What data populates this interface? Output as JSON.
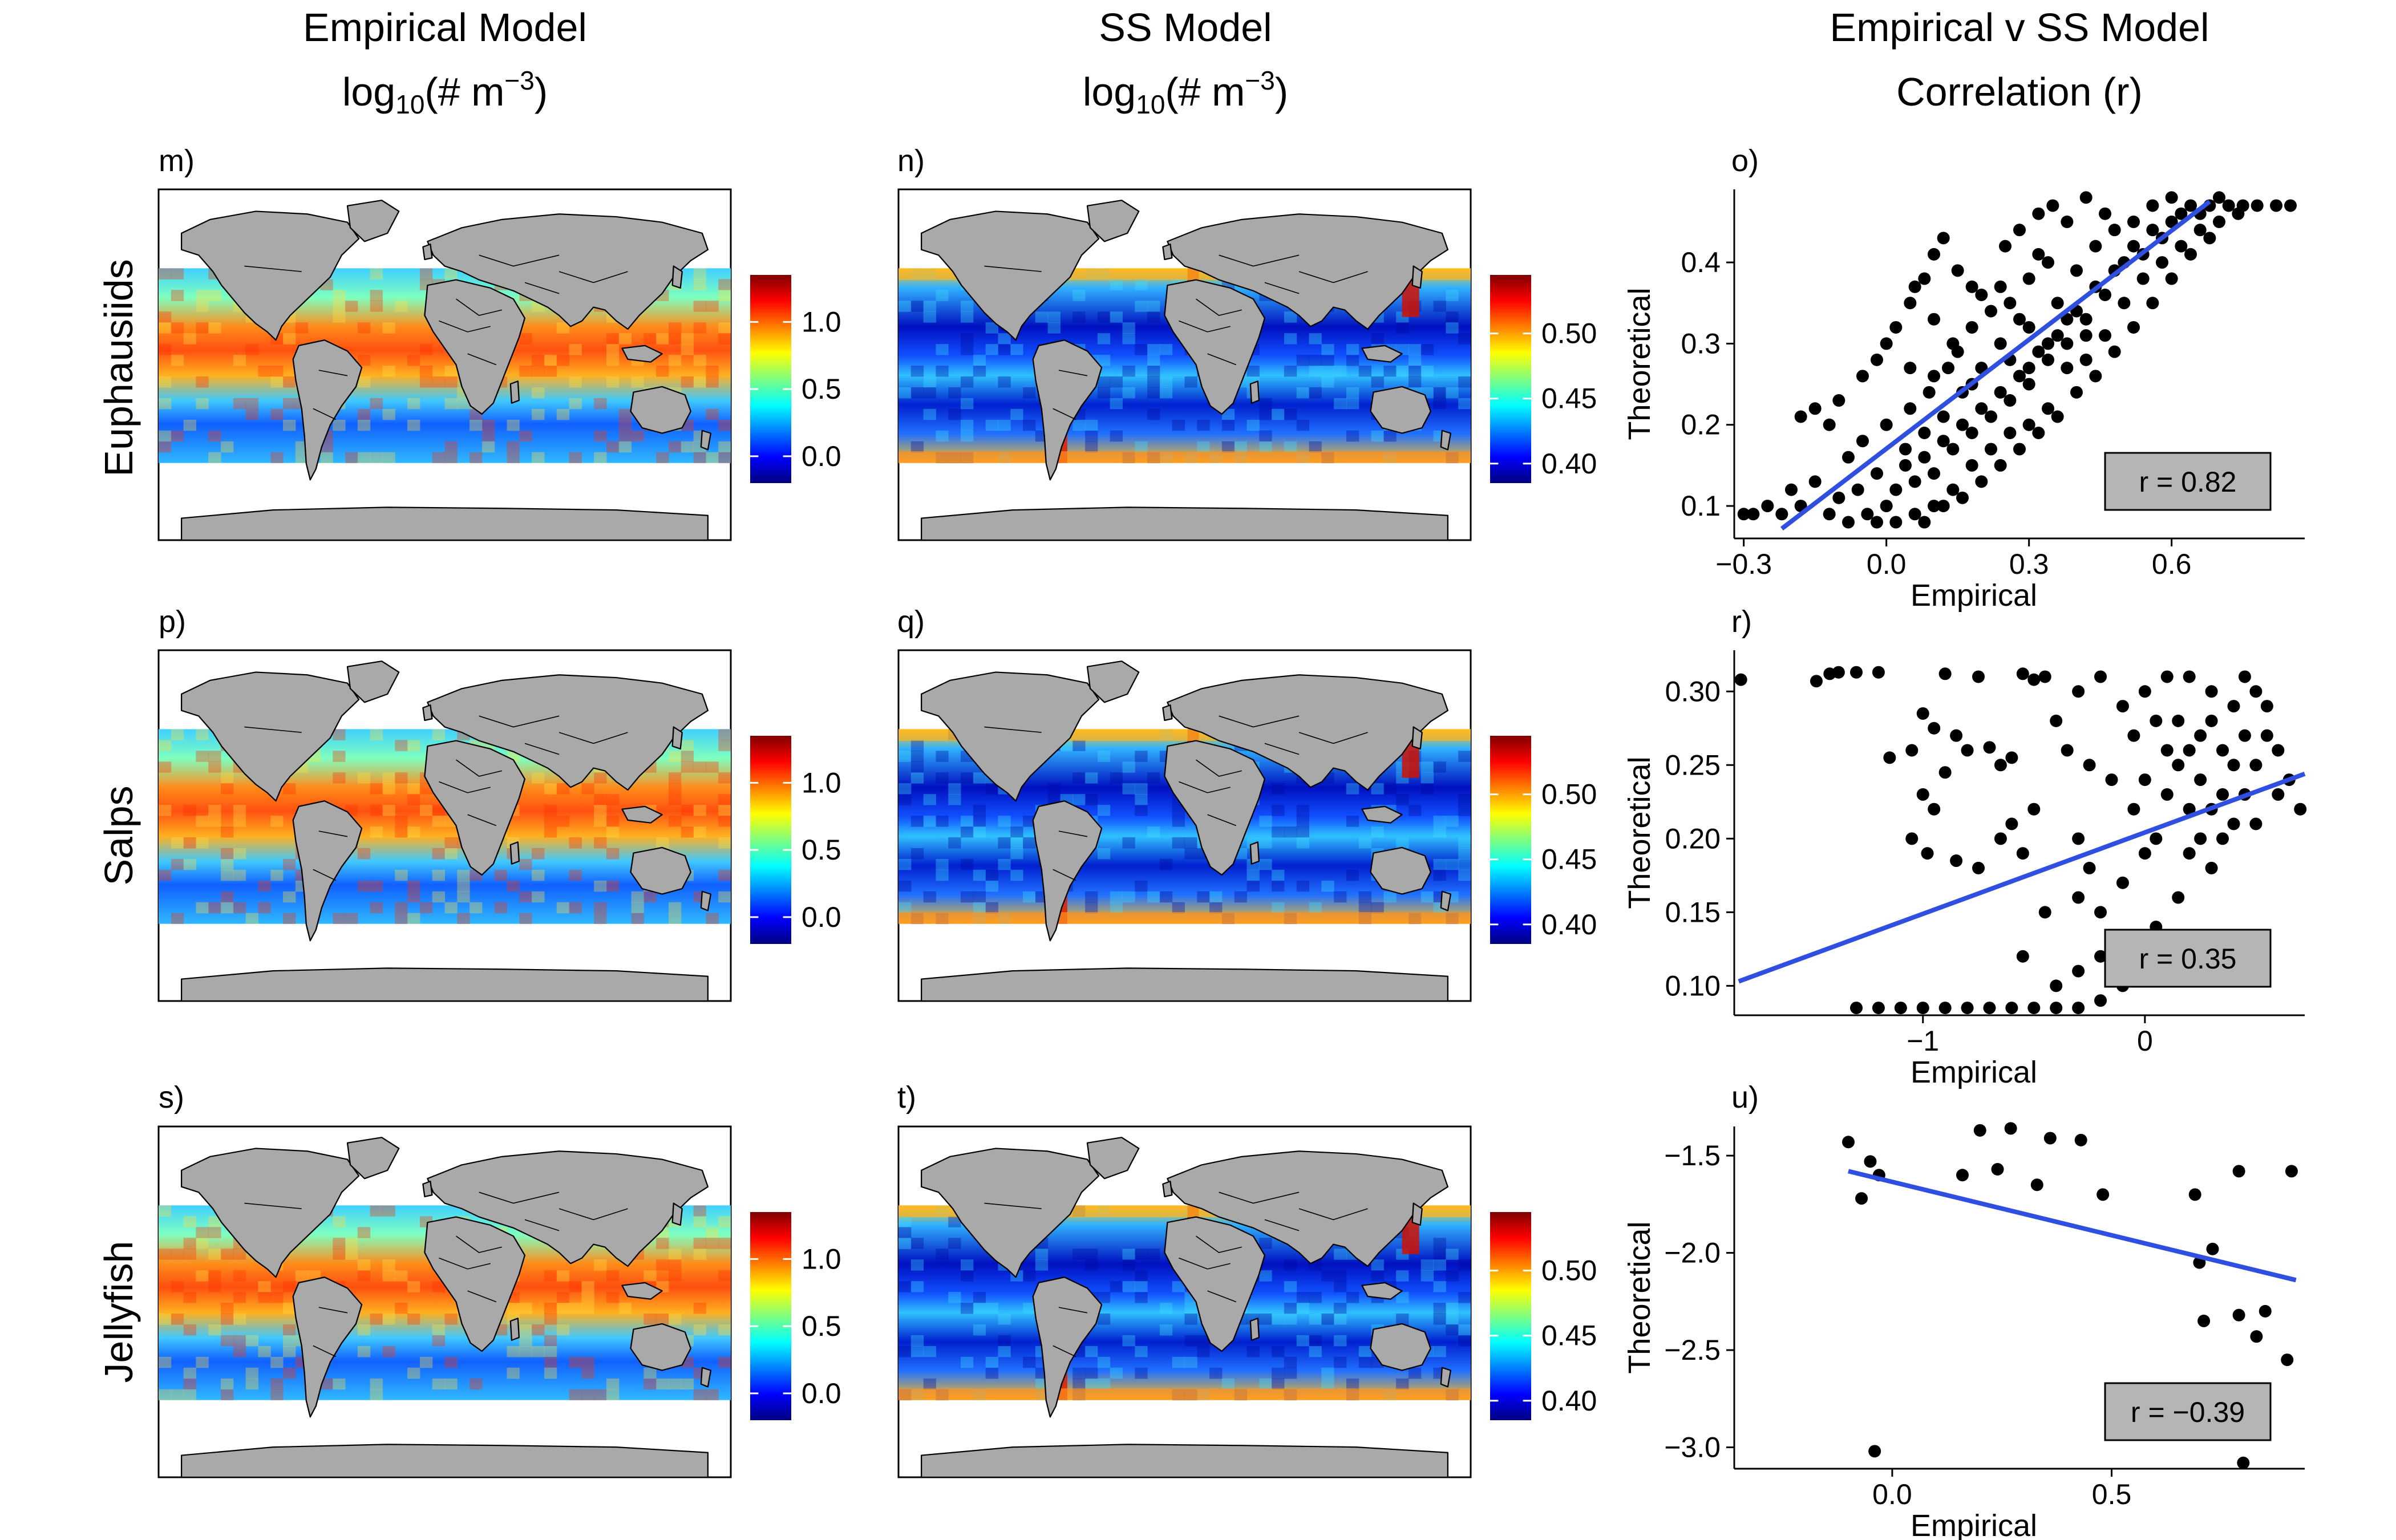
{
  "figure": {
    "column_titles": [
      {
        "line1": "Empirical Model",
        "line2_base": "log",
        "line2_sub": "10",
        "line2_mid": "(# m",
        "line2_sup": "−3",
        "line2_end": ")"
      },
      {
        "line1": "SS Model",
        "line2_base": "log",
        "line2_sub": "10",
        "line2_mid": "(# m",
        "line2_sup": "−3",
        "line2_end": ")"
      },
      {
        "line1": "Empirical v SS Model",
        "line2_base": "Correlation (r)",
        "line2_sub": "",
        "line2_mid": "",
        "line2_sup": "",
        "line2_end": ""
      }
    ],
    "row_titles": [
      "Euphausiids",
      "Salps",
      "Jellyfish"
    ],
    "panel_labels": [
      "m)",
      "n)",
      "o)",
      "p)",
      "q)",
      "r)",
      "s)",
      "t)",
      "u)"
    ],
    "colorbars": {
      "empirical": {
        "ticks": [
          "1.0",
          "0.5",
          "0.0"
        ],
        "range": [
          -0.2,
          1.35
        ]
      },
      "ss": {
        "ticks": [
          "0.50",
          "0.45",
          "0.40"
        ],
        "range": [
          0.385,
          0.545
        ]
      }
    },
    "colors": {
      "land": "#a9a9a9",
      "fit_line": "#2e4fe0",
      "points": "#000000",
      "rbox": "#b5b5b5"
    }
  },
  "chart_data": [
    {
      "type": "scatter",
      "panel": "o)",
      "xlabel": "Empirical",
      "ylabel": "Theoretical",
      "xlim": [
        -0.32,
        0.88
      ],
      "ylim": [
        0.06,
        0.49
      ],
      "xticks": [
        "-0.3",
        "0.0",
        "0.3",
        "0.6"
      ],
      "xtick_values": [
        -0.3,
        0.0,
        0.3,
        0.6
      ],
      "yticks": [
        "0.1",
        "0.2",
        "0.3",
        "0.4"
      ],
      "ytick_values": [
        0.1,
        0.2,
        0.3,
        0.4
      ],
      "annotation": "r = 0.82",
      "fit": [
        [
          -0.22,
          0.072
        ],
        [
          0.68,
          0.475
        ]
      ],
      "points": [
        [
          -0.3,
          0.09
        ],
        [
          -0.28,
          0.09
        ],
        [
          -0.25,
          0.1
        ],
        [
          -0.22,
          0.09
        ],
        [
          -0.2,
          0.12
        ],
        [
          -0.18,
          0.1
        ],
        [
          -0.15,
          0.13
        ],
        [
          -0.12,
          0.09
        ],
        [
          -0.1,
          0.11
        ],
        [
          -0.08,
          0.08
        ],
        [
          -0.06,
          0.12
        ],
        [
          -0.04,
          0.09
        ],
        [
          -0.02,
          0.14
        ],
        [
          0.0,
          0.1
        ],
        [
          0.02,
          0.12
        ],
        [
          0.04,
          0.15
        ],
        [
          0.06,
          0.13
        ],
        [
          0.08,
          0.16
        ],
        [
          0.1,
          0.14
        ],
        [
          0.12,
          0.18
        ],
        [
          0.14,
          0.17
        ],
        [
          0.16,
          0.2
        ],
        [
          0.18,
          0.19
        ],
        [
          0.2,
          0.22
        ],
        [
          0.22,
          0.21
        ],
        [
          0.24,
          0.24
        ],
        [
          0.26,
          0.23
        ],
        [
          0.28,
          0.26
        ],
        [
          0.3,
          0.25
        ],
        [
          0.32,
          0.29
        ],
        [
          0.34,
          0.28
        ],
        [
          0.36,
          0.31
        ],
        [
          0.38,
          0.3
        ],
        [
          0.4,
          0.34
        ],
        [
          0.42,
          0.33
        ],
        [
          0.44,
          0.37
        ],
        [
          0.46,
          0.36
        ],
        [
          0.48,
          0.39
        ],
        [
          0.5,
          0.4
        ],
        [
          0.52,
          0.42
        ],
        [
          0.54,
          0.41
        ],
        [
          0.56,
          0.44
        ],
        [
          0.58,
          0.43
        ],
        [
          0.6,
          0.45
        ],
        [
          0.62,
          0.46
        ],
        [
          0.64,
          0.47
        ],
        [
          0.66,
          0.46
        ],
        [
          0.68,
          0.47
        ],
        [
          0.7,
          0.48
        ],
        [
          0.72,
          0.47
        ],
        [
          0.75,
          0.47
        ],
        [
          0.78,
          0.47
        ],
        [
          0.82,
          0.47
        ],
        [
          0.85,
          0.47
        ],
        [
          -0.15,
          0.22
        ],
        [
          -0.1,
          0.23
        ],
        [
          -0.05,
          0.26
        ],
        [
          -0.02,
          0.28
        ],
        [
          0.0,
          0.3
        ],
        [
          0.02,
          0.32
        ],
        [
          0.05,
          0.35
        ],
        [
          0.08,
          0.38
        ],
        [
          0.1,
          0.41
        ],
        [
          0.12,
          0.43
        ],
        [
          0.15,
          0.39
        ],
        [
          0.18,
          0.37
        ],
        [
          0.2,
          0.36
        ],
        [
          0.25,
          0.42
        ],
        [
          0.28,
          0.44
        ],
        [
          0.32,
          0.46
        ],
        [
          0.35,
          0.47
        ],
        [
          0.38,
          0.45
        ],
        [
          0.42,
          0.48
        ],
        [
          0.1,
          0.26
        ],
        [
          0.14,
          0.3
        ],
        [
          0.18,
          0.32
        ],
        [
          0.22,
          0.34
        ],
        [
          0.26,
          0.35
        ],
        [
          0.3,
          0.38
        ],
        [
          0.34,
          0.4
        ],
        [
          0.05,
          0.22
        ],
        [
          0.09,
          0.24
        ],
        [
          0.13,
          0.27
        ],
        [
          0.0,
          0.2
        ],
        [
          -0.05,
          0.18
        ],
        [
          0.24,
          0.3
        ],
        [
          0.28,
          0.33
        ],
        [
          0.36,
          0.35
        ],
        [
          0.4,
          0.39
        ],
        [
          0.44,
          0.42
        ],
        [
          0.48,
          0.44
        ],
        [
          0.52,
          0.45
        ],
        [
          0.2,
          0.27
        ],
        [
          0.16,
          0.24
        ],
        [
          0.12,
          0.21
        ],
        [
          0.08,
          0.19
        ],
        [
          0.04,
          0.17
        ],
        [
          0.3,
          0.27
        ],
        [
          0.34,
          0.3
        ],
        [
          0.38,
          0.33
        ],
        [
          0.22,
          0.17
        ],
        [
          0.26,
          0.19
        ],
        [
          0.18,
          0.15
        ],
        [
          0.14,
          0.12
        ],
        [
          0.1,
          0.1
        ],
        [
          0.06,
          0.09
        ],
        [
          0.3,
          0.2
        ],
        [
          0.34,
          0.22
        ],
        [
          0.42,
          0.28
        ],
        [
          0.46,
          0.31
        ],
        [
          0.5,
          0.35
        ],
        [
          0.54,
          0.38
        ],
        [
          0.58,
          0.4
        ],
        [
          0.62,
          0.42
        ],
        [
          0.66,
          0.44
        ],
        [
          0.7,
          0.45
        ],
        [
          0.74,
          0.46
        ],
        [
          -0.08,
          0.16
        ],
        [
          -0.12,
          0.2
        ],
        [
          -0.18,
          0.21
        ],
        [
          0.02,
          0.08
        ],
        [
          -0.02,
          0.08
        ],
        [
          0.08,
          0.08
        ],
        [
          0.12,
          0.1
        ],
        [
          0.16,
          0.11
        ],
        [
          0.2,
          0.13
        ],
        [
          0.24,
          0.15
        ],
        [
          0.28,
          0.17
        ],
        [
          0.32,
          0.19
        ],
        [
          0.36,
          0.21
        ],
        [
          0.4,
          0.24
        ],
        [
          0.44,
          0.26
        ],
        [
          0.48,
          0.29
        ],
        [
          0.52,
          0.32
        ],
        [
          0.56,
          0.35
        ],
        [
          0.6,
          0.38
        ],
        [
          0.64,
          0.41
        ],
        [
          0.68,
          0.43
        ],
        [
          0.15,
          0.29
        ],
        [
          0.1,
          0.33
        ],
        [
          0.06,
          0.37
        ],
        [
          0.24,
          0.37
        ],
        [
          0.32,
          0.41
        ],
        [
          0.05,
          0.27
        ],
        [
          0.18,
          0.25
        ],
        [
          0.3,
          0.32
        ],
        [
          0.46,
          0.46
        ],
        [
          0.56,
          0.47
        ],
        [
          0.6,
          0.48
        ],
        [
          0.38,
          0.27
        ],
        [
          0.42,
          0.31
        ],
        [
          0.26,
          0.28
        ]
      ]
    },
    {
      "type": "scatter",
      "panel": "r)",
      "xlabel": "Empirical",
      "ylabel": "Theoretical",
      "xlim": [
        -1.85,
        0.72
      ],
      "ylim": [
        0.08,
        0.328
      ],
      "xticks": [
        "-1",
        "0"
      ],
      "xtick_values": [
        -1,
        0
      ],
      "yticks": [
        "0.10",
        "0.15",
        "0.20",
        "0.25",
        "0.30"
      ],
      "ytick_values": [
        0.1,
        0.15,
        0.2,
        0.25,
        0.3
      ],
      "annotation": "r = 0.35",
      "fit": [
        [
          -1.83,
          0.103
        ],
        [
          0.72,
          0.244
        ]
      ],
      "points": [
        [
          -1.82,
          0.308
        ],
        [
          -1.48,
          0.307
        ],
        [
          -1.42,
          0.312
        ],
        [
          -1.38,
          0.313
        ],
        [
          -1.3,
          0.313
        ],
        [
          -1.2,
          0.313
        ],
        [
          -0.9,
          0.312
        ],
        [
          -0.75,
          0.31
        ],
        [
          -0.55,
          0.312
        ],
        [
          -0.5,
          0.308
        ],
        [
          -1.0,
          0.285
        ],
        [
          -0.95,
          0.275
        ],
        [
          -0.85,
          0.27
        ],
        [
          -0.8,
          0.26
        ],
        [
          -0.7,
          0.262
        ],
        [
          -0.6,
          0.255
        ],
        [
          -0.65,
          0.25
        ],
        [
          -1.15,
          0.255
        ],
        [
          -1.05,
          0.26
        ],
        [
          -0.9,
          0.245
        ],
        [
          -1.0,
          0.23
        ],
        [
          -0.95,
          0.22
        ],
        [
          -1.05,
          0.2
        ],
        [
          -0.98,
          0.19
        ],
        [
          -0.85,
          0.185
        ],
        [
          -0.75,
          0.18
        ],
        [
          -0.65,
          0.2
        ],
        [
          -0.6,
          0.21
        ],
        [
          -0.55,
          0.19
        ],
        [
          -1.3,
          0.085
        ],
        [
          -1.2,
          0.085
        ],
        [
          -1.1,
          0.085
        ],
        [
          -1.0,
          0.085
        ],
        [
          -0.9,
          0.085
        ],
        [
          -0.8,
          0.085
        ],
        [
          -0.7,
          0.085
        ],
        [
          -0.6,
          0.085
        ],
        [
          -0.5,
          0.085
        ],
        [
          -0.4,
          0.085
        ],
        [
          -0.3,
          0.085
        ],
        [
          -0.2,
          0.09
        ],
        [
          -0.1,
          0.1
        ],
        [
          0.0,
          0.11
        ],
        [
          0.1,
          0.12
        ],
        [
          -0.15,
          0.13
        ],
        [
          -0.2,
          0.15
        ],
        [
          -0.1,
          0.17
        ],
        [
          0.0,
          0.19
        ],
        [
          0.05,
          0.2
        ],
        [
          -0.05,
          0.22
        ],
        [
          0.1,
          0.23
        ],
        [
          0.15,
          0.25
        ],
        [
          0.2,
          0.26
        ],
        [
          0.25,
          0.24
        ],
        [
          0.3,
          0.22
        ],
        [
          0.35,
          0.2
        ],
        [
          0.4,
          0.21
        ],
        [
          0.45,
          0.23
        ],
        [
          0.5,
          0.25
        ],
        [
          0.55,
          0.27
        ],
        [
          0.6,
          0.26
        ],
        [
          0.65,
          0.24
        ],
        [
          0.7,
          0.22
        ],
        [
          0.0,
          0.3
        ],
        [
          0.1,
          0.31
        ],
        [
          0.2,
          0.31
        ],
        [
          0.3,
          0.3
        ],
        [
          0.4,
          0.29
        ],
        [
          0.5,
          0.3
        ],
        [
          -0.2,
          0.31
        ],
        [
          -0.3,
          0.3
        ],
        [
          -0.4,
          0.28
        ],
        [
          -0.35,
          0.26
        ],
        [
          -0.25,
          0.25
        ],
        [
          -0.15,
          0.24
        ],
        [
          -0.05,
          0.27
        ],
        [
          0.05,
          0.28
        ],
        [
          0.15,
          0.28
        ],
        [
          0.25,
          0.27
        ],
        [
          0.35,
          0.26
        ],
        [
          0.45,
          0.27
        ],
        [
          0.55,
          0.29
        ],
        [
          -0.3,
          0.2
        ],
        [
          -0.25,
          0.18
        ],
        [
          -0.3,
          0.16
        ],
        [
          -0.2,
          0.12
        ],
        [
          -0.3,
          0.11
        ],
        [
          -0.4,
          0.1
        ],
        [
          0.2,
          0.19
        ],
        [
          0.3,
          0.18
        ],
        [
          0.15,
          0.16
        ],
        [
          0.05,
          0.14
        ],
        [
          0.2,
          0.22
        ],
        [
          0.4,
          0.25
        ],
        [
          0.6,
          0.23
        ],
        [
          0.5,
          0.21
        ],
        [
          0.1,
          0.26
        ],
        [
          -0.1,
          0.29
        ],
        [
          0.0,
          0.24
        ],
        [
          0.3,
          0.28
        ],
        [
          0.45,
          0.31
        ],
        [
          -0.45,
          0.31
        ],
        [
          -0.5,
          0.22
        ],
        [
          -0.45,
          0.15
        ],
        [
          -0.55,
          0.12
        ],
        [
          0.25,
          0.2
        ],
        [
          0.35,
          0.23
        ]
      ]
    },
    {
      "type": "scatter",
      "panel": "u)",
      "xlabel": "Empirical",
      "ylabel": "Theoretical",
      "xlim": [
        -0.36,
        0.94
      ],
      "ylim": [
        -3.11,
        -1.35
      ],
      "xticks": [
        "0.0",
        "0.5"
      ],
      "xtick_values": [
        0.0,
        0.5
      ],
      "yticks": [
        "-1.5",
        "-2.0",
        "-2.5",
        "-3.0"
      ],
      "ytick_values": [
        -1.5,
        -2.0,
        -2.5,
        -3.0
      ],
      "annotation": "r = −0.39",
      "fit": [
        [
          -0.1,
          -1.58
        ],
        [
          0.92,
          -2.14
        ]
      ],
      "points": [
        [
          -0.1,
          -1.43
        ],
        [
          -0.05,
          -1.53
        ],
        [
          -0.03,
          -1.6
        ],
        [
          -0.07,
          -1.72
        ],
        [
          -0.04,
          -3.02
        ],
        [
          0.2,
          -1.37
        ],
        [
          0.27,
          -1.36
        ],
        [
          0.36,
          -1.41
        ],
        [
          0.43,
          -1.42
        ],
        [
          0.16,
          -1.6
        ],
        [
          0.24,
          -1.57
        ],
        [
          0.33,
          -1.65
        ],
        [
          0.48,
          -1.7
        ],
        [
          0.69,
          -1.7
        ],
        [
          0.79,
          -1.58
        ],
        [
          0.91,
          -1.58
        ],
        [
          0.7,
          -2.05
        ],
        [
          0.73,
          -1.98
        ],
        [
          0.71,
          -2.35
        ],
        [
          0.79,
          -2.32
        ],
        [
          0.83,
          -2.43
        ],
        [
          0.85,
          -2.3
        ],
        [
          0.9,
          -2.55
        ],
        [
          0.8,
          -3.08
        ]
      ]
    }
  ]
}
